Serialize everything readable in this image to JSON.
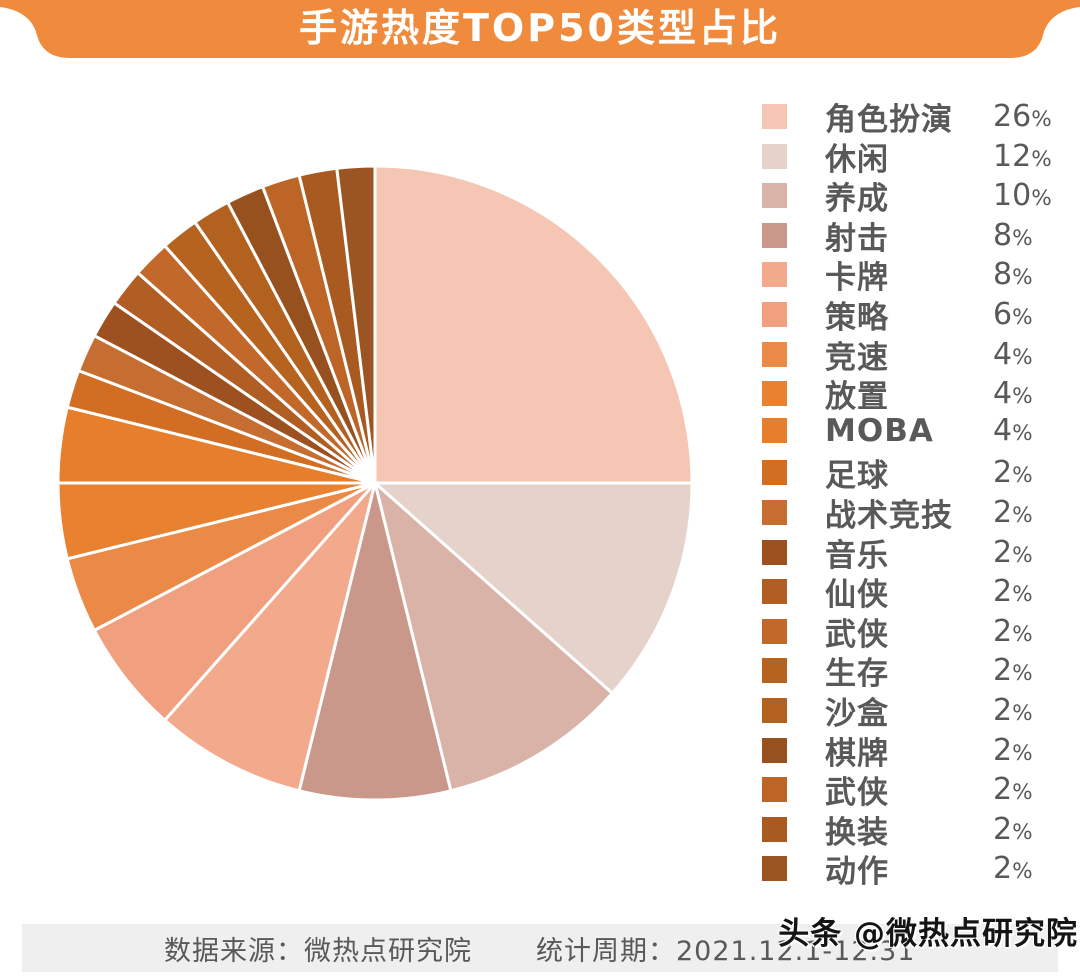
{
  "banner": {
    "title": "手游热度TOP50类型占比"
  },
  "chart_data": {
    "type": "pie",
    "title": "手游热度TOP50类型占比",
    "legend_position": "right",
    "start_angle_deg": 0,
    "direction": "clockwise",
    "unit": "%",
    "categories": [
      "角色扮演",
      "休闲",
      "养成",
      "射击",
      "卡牌",
      "策略",
      "竞速",
      "放置",
      "MOBA",
      "足球",
      "战术竞技",
      "音乐",
      "仙侠",
      "武侠",
      "生存",
      "沙盒",
      "棋牌",
      "武侠",
      "换装",
      "动作"
    ],
    "values": [
      26,
      12,
      10,
      8,
      8,
      6,
      4,
      4,
      4,
      2,
      2,
      2,
      2,
      2,
      2,
      2,
      2,
      2,
      2,
      2
    ],
    "labels": [
      "26%",
      "12%",
      "10%",
      "8%",
      "8%",
      "6%",
      "4%",
      "4%",
      "4%",
      "2%",
      "2%",
      "2%",
      "2%",
      "2%",
      "2%",
      "2%",
      "2%",
      "2%",
      "2%",
      "2%"
    ],
    "colors": [
      "#f4c6b3",
      "#e4d2cb",
      "#d9b3a8",
      "#ca988b",
      "#f2a98c",
      "#f0a07e",
      "#eb8a46",
      "#e88231",
      "#e67e2c",
      "#d26e24",
      "#c66e31",
      "#9d5120",
      "#b05e24",
      "#c1682a",
      "#b5631f",
      "#b2611f",
      "#96511e",
      "#bd6526",
      "#a95a20",
      "#9b5523"
    ]
  },
  "footer": {
    "source": "数据来源：微热点研究院",
    "period": "统计周期：2021.12.1-12.31"
  },
  "watermark": "头条 @微热点研究院",
  "theme": {
    "banner_color": "#f08a3c",
    "footer_bg": "#efefef",
    "text_gray": "#595959",
    "slice_separator": "#ffffff"
  }
}
